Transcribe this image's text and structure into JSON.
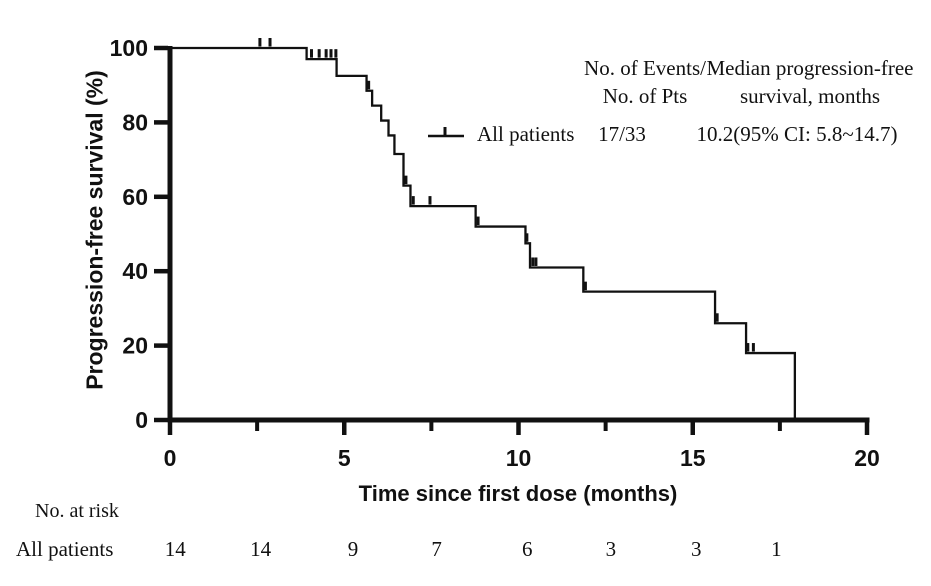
{
  "figure": {
    "background": "#ffffff",
    "ink_color": "#111111"
  },
  "chart_data": {
    "type": "line",
    "subtype": "kaplan-meier-step-curve",
    "title": "",
    "xlabel": "Time since first dose (months)",
    "ylabel": "Progression-free survival (%)",
    "xlim": [
      0,
      20
    ],
    "ylim": [
      0,
      100
    ],
    "x_ticks_major": [
      0,
      5,
      10,
      15,
      20
    ],
    "x_ticks_minor": [
      2.5,
      7.5,
      12.5,
      17.5
    ],
    "y_ticks": [
      0,
      20,
      40,
      60,
      80,
      100
    ],
    "grid": false,
    "legend_position": "upper-right-inside",
    "series": [
      {
        "name": "All patients",
        "events_over_pts": "17/33",
        "median_pfs_months": "10.2(95% CI: 5.8~14.7)",
        "steps": [
          [
            0,
            100
          ],
          [
            3.92,
            97
          ],
          [
            4.78,
            92.5
          ],
          [
            5.64,
            88.5
          ],
          [
            5.8,
            84.5
          ],
          [
            6.06,
            80.5
          ],
          [
            6.27,
            76.5
          ],
          [
            6.44,
            71.5
          ],
          [
            6.7,
            63
          ],
          [
            6.9,
            57.5
          ],
          [
            8.77,
            52
          ],
          [
            10.2,
            47.5
          ],
          [
            10.33,
            41
          ],
          [
            11.86,
            34.5
          ],
          [
            15.64,
            26
          ],
          [
            16.53,
            18
          ],
          [
            17.93,
            0
          ]
        ],
        "censor_marks": [
          [
            2.58,
            100
          ],
          [
            2.87,
            100
          ],
          [
            4.06,
            97
          ],
          [
            4.28,
            97
          ],
          [
            4.48,
            97
          ],
          [
            4.62,
            97
          ],
          [
            4.76,
            97
          ],
          [
            5.7,
            88.5
          ],
          [
            6.77,
            63
          ],
          [
            6.98,
            57.5
          ],
          [
            7.46,
            57.5
          ],
          [
            8.84,
            52
          ],
          [
            10.24,
            47.5
          ],
          [
            10.41,
            41
          ],
          [
            10.5,
            41
          ],
          [
            11.92,
            34.5
          ],
          [
            15.7,
            26
          ],
          [
            16.58,
            18
          ],
          [
            16.74,
            18
          ]
        ]
      }
    ]
  },
  "legend": {
    "col1_header_line1": "No. of Events/",
    "col1_header_line2": "No. of Pts",
    "col2_header_line1": "Median progression-free",
    "col2_header_line2": "survival, months",
    "series_label": "All patients",
    "col1_value": "17/33",
    "col2_value": "10.2(95% CI: 5.8~14.7)"
  },
  "risk_table": {
    "title": "No. at risk",
    "row_label": "All patients",
    "values": [
      "14",
      "14",
      "9",
      "7",
      "6",
      "3",
      "3",
      "1"
    ]
  }
}
